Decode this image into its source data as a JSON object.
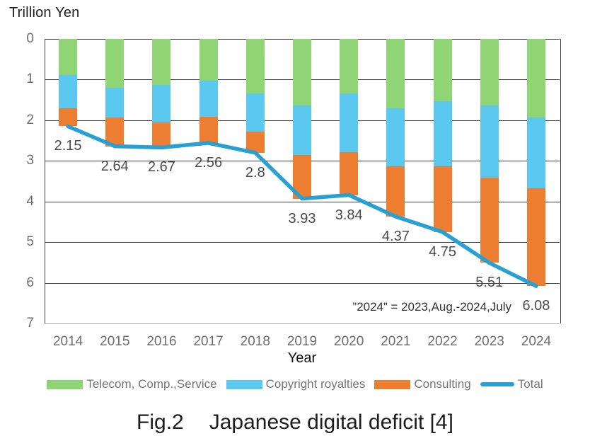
{
  "y_axis_title": "Trillion Yen",
  "x_axis_label": "Year",
  "annotation_note": "”2024” = 2023,Aug.-2024,July",
  "caption": {
    "fig_label": "Fig.2",
    "title": "Japanese digital deficit [4]"
  },
  "colors": {
    "telecom_green": "#8FD475",
    "copyright_blue": "#5BC8EF",
    "consulting_orange": "#ED7D31",
    "total_line_blue": "#29A0D4",
    "gridline": "#3f3f3f",
    "axis_bottom": "#a8a8a8",
    "tick_text": "#6e6e6e",
    "data_label_text": "#4b4b4b",
    "legend_text": "#757575"
  },
  "chart_data": {
    "type": "bar",
    "subtype": "stacked-bars-with-total-line",
    "title": "",
    "xlabel": "Year",
    "ylabel": "Trillion Yen",
    "categories": [
      "2014",
      "2015",
      "2016",
      "2017",
      "2018",
      "2019",
      "2020",
      "2021",
      "2022",
      "2023",
      "2024"
    ],
    "series": [
      {
        "name": "Telecom, Comp.,Service",
        "type": "bar",
        "color": "#8FD475",
        "values": [
          0.88,
          1.2,
          1.13,
          1.03,
          1.34,
          1.63,
          1.34,
          1.71,
          1.54,
          1.64,
          1.94
        ]
      },
      {
        "name": "Copyright royalties",
        "type": "bar",
        "color": "#5BC8EF",
        "values": [
          0.82,
          0.74,
          0.92,
          0.88,
          0.94,
          1.22,
          1.45,
          1.43,
          1.6,
          1.78,
          1.74
        ]
      },
      {
        "name": "Consulting",
        "type": "bar",
        "color": "#ED7D31",
        "values": [
          0.45,
          0.7,
          0.62,
          0.65,
          0.52,
          1.08,
          1.05,
          1.23,
          1.61,
          2.09,
          2.4
        ]
      },
      {
        "name": "Total",
        "type": "line",
        "color": "#29A0D4",
        "values": [
          2.15,
          2.64,
          2.67,
          2.56,
          2.8,
          3.93,
          3.84,
          4.37,
          4.75,
          5.51,
          6.08
        ]
      }
    ],
    "data_labels": [
      "2.15",
      "2.64",
      "2.67",
      "2.56",
      "2.8",
      "3.93",
      "3.84",
      "4.37",
      "4.75",
      "5.51",
      "6.08"
    ],
    "ylim": [
      0,
      7
    ],
    "y_axis_inverted": true,
    "yticks": [
      0,
      1,
      2,
      3,
      4,
      5,
      6,
      7
    ],
    "grid": true,
    "stacked": true,
    "legend_position": "bottom"
  }
}
